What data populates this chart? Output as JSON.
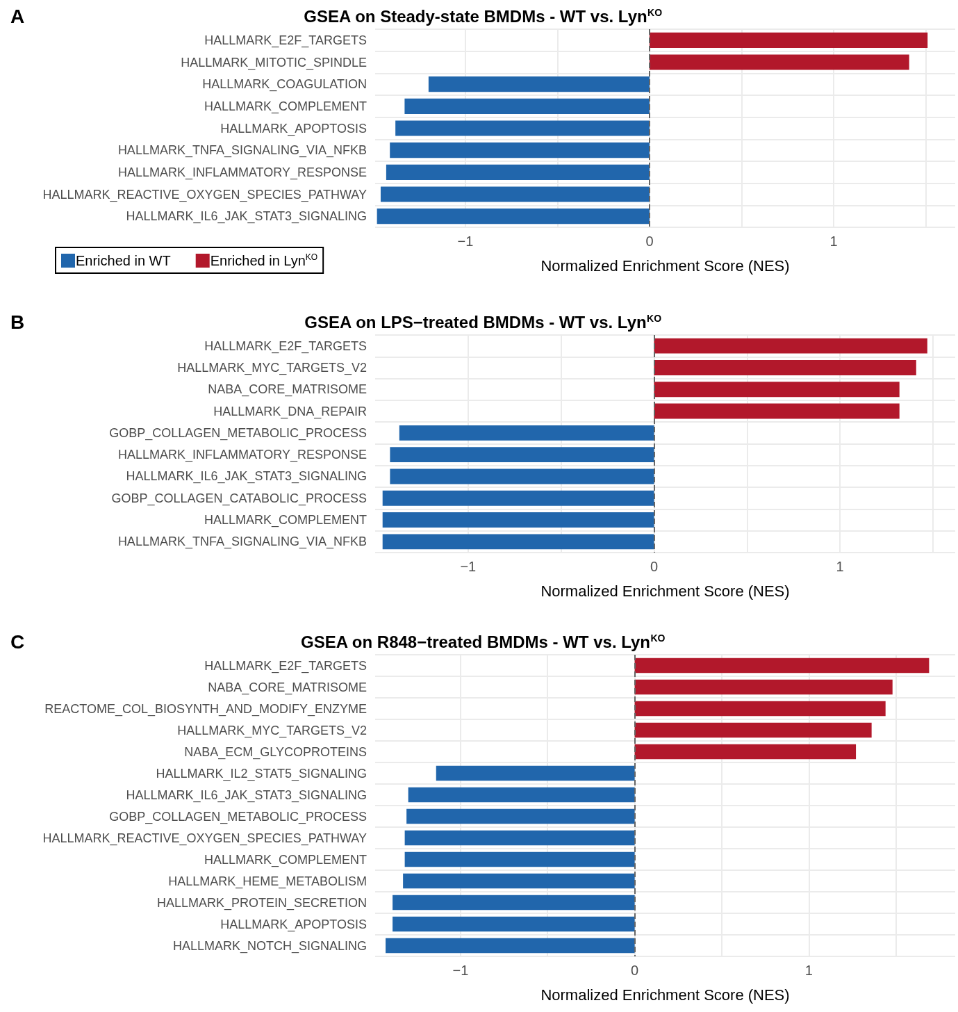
{
  "chart_data": [
    {
      "type": "bar",
      "orientation": "horizontal",
      "stacked": true,
      "title": "GSEA on Steady-state BMDMs - WT vs. Lyn$^{KO}$",
      "xlabel": "Normalized Enrichment Score (NES)",
      "annotations": [
        "A"
      ],
      "categories": [
        "HALLMARK_E2F_TARGETS",
        "HALLMARK_MITOTIC_SPINDLE",
        "HALLMARK_COAGULATION",
        "HALLMARK_COMPLEMENT",
        "HALLMARK_APOPTOSIS",
        "HALLMARK_TNFA_SIGNALING_VIA_NFKB",
        "HALLMARK_INFLAMMATORY_RESPONSE",
        "HALLMARK_REACTIVE_OXYGEN_SPECIES_PATHWAY",
        "HALLMARK_IL6_JAK_STAT3_SIGNALING"
      ],
      "series": [
        {
          "name": "Enriched in WT",
          "color": "#2166ac",
          "values": [
            null,
            null,
            -1.2,
            -1.33,
            -1.38,
            -1.41,
            -1.43,
            -1.46,
            -1.48
          ]
        },
        {
          "name": "Enriched in Lyn$^{KO}$",
          "color": "#b2182b",
          "values": [
            1.51,
            1.41,
            null,
            null,
            null,
            null,
            null,
            null,
            null
          ]
        }
      ],
      "xlim": [
        -1.49,
        1.66
      ],
      "xticks": [
        {
          "value": -1,
          "label": "−1"
        },
        {
          "value": -0.5,
          "label": null
        },
        {
          "value": 0,
          "label": "0"
        },
        {
          "value": 0.5,
          "label": null
        },
        {
          "value": 1,
          "label": "1"
        },
        {
          "value": 1.5,
          "label": null
        }
      ],
      "ref_lines": [
        {
          "axis": "x",
          "value": 0,
          "label": null,
          "color": "#666666",
          "line_style": "dashed"
        }
      ],
      "grid": true,
      "legend": "bottom left"
    },
    {
      "type": "bar",
      "orientation": "horizontal",
      "stacked": true,
      "title": "GSEA on LPS−treated BMDMs - WT vs. Lyn$^{KO}$",
      "xlabel": "Normalized Enrichment Score (NES)",
      "annotations": [
        "B"
      ],
      "categories": [
        "HALLMARK_E2F_TARGETS",
        "HALLMARK_MYC_TARGETS_V2",
        "NABA_CORE_MATRISOME",
        "HALLMARK_DNA_REPAIR",
        "GOBP_COLLAGEN_METABOLIC_PROCESS",
        "HALLMARK_INFLAMMATORY_RESPONSE",
        "HALLMARK_IL6_JAK_STAT3_SIGNALING",
        "GOBP_COLLAGEN_CATABOLIC_PROCESS",
        "HALLMARK_COMPLEMENT",
        "HALLMARK_TNFA_SIGNALING_VIA_NFKB"
      ],
      "series": [
        {
          "color": "#2166ac",
          "values": [
            null,
            null,
            null,
            null,
            -1.37,
            -1.42,
            -1.42,
            -1.46,
            -1.46,
            -1.46
          ]
        },
        {
          "color": "#b2182b",
          "values": [
            1.47,
            1.41,
            1.32,
            1.32,
            null,
            null,
            null,
            null,
            null,
            null
          ]
        }
      ],
      "xlim": [
        -1.5,
        1.62
      ],
      "xticks": [
        {
          "value": -1,
          "label": "−1"
        },
        {
          "value": -0.5,
          "label": null
        },
        {
          "value": 0,
          "label": "0"
        },
        {
          "value": 0.5,
          "label": null
        },
        {
          "value": 1,
          "label": "1"
        },
        {
          "value": 1.5,
          "label": null
        }
      ],
      "ref_lines": [
        {
          "axis": "x",
          "value": 0,
          "label": null,
          "color": "#666666",
          "line_style": "dashed"
        }
      ],
      "grid": true
    },
    {
      "type": "bar",
      "orientation": "horizontal",
      "stacked": true,
      "title": "GSEA on R848−treated BMDMs - WT vs. Lyn$^{KO}$",
      "xlabel": "Normalized Enrichment Score (NES)",
      "annotations": [
        "C"
      ],
      "categories": [
        "HALLMARK_E2F_TARGETS",
        "NABA_CORE_MATRISOME",
        "REACTOME_COL_BIOSYNTH_AND_MODIFY_ENZYME",
        "HALLMARK_MYC_TARGETS_V2",
        "NABA_ECM_GLYCOPROTEINS",
        "HALLMARK_IL2_STAT5_SIGNALING",
        "HALLMARK_IL6_JAK_STAT3_SIGNALING",
        "GOBP_COLLAGEN_METABOLIC_PROCESS",
        "HALLMARK_REACTIVE_OXYGEN_SPECIES_PATHWAY",
        "HALLMARK_COMPLEMENT",
        "HALLMARK_HEME_METABOLISM",
        "HALLMARK_PROTEIN_SECRETION",
        "HALLMARK_APOPTOSIS",
        "HALLMARK_NOTCH_SIGNALING"
      ],
      "series": [
        {
          "color": "#2166ac",
          "values": [
            null,
            null,
            null,
            null,
            null,
            -1.14,
            -1.3,
            -1.31,
            -1.32,
            -1.32,
            -1.33,
            -1.39,
            -1.39,
            -1.43
          ]
        },
        {
          "color": "#b2182b",
          "values": [
            1.69,
            1.48,
            1.44,
            1.36,
            1.27,
            null,
            null,
            null,
            null,
            null,
            null,
            null,
            null,
            null
          ]
        }
      ],
      "xlim": [
        -1.49,
        1.84
      ],
      "xticks": [
        {
          "value": -1,
          "label": "−1"
        },
        {
          "value": -0.5,
          "label": null
        },
        {
          "value": 0,
          "label": "0"
        },
        {
          "value": 0.5,
          "label": null
        },
        {
          "value": 1,
          "label": "1"
        },
        {
          "value": 1.5,
          "label": null
        }
      ],
      "ref_lines": [
        {
          "axis": "x",
          "value": 0,
          "label": null,
          "color": "#666666",
          "line_style": "dashed"
        }
      ],
      "grid": true
    }
  ]
}
